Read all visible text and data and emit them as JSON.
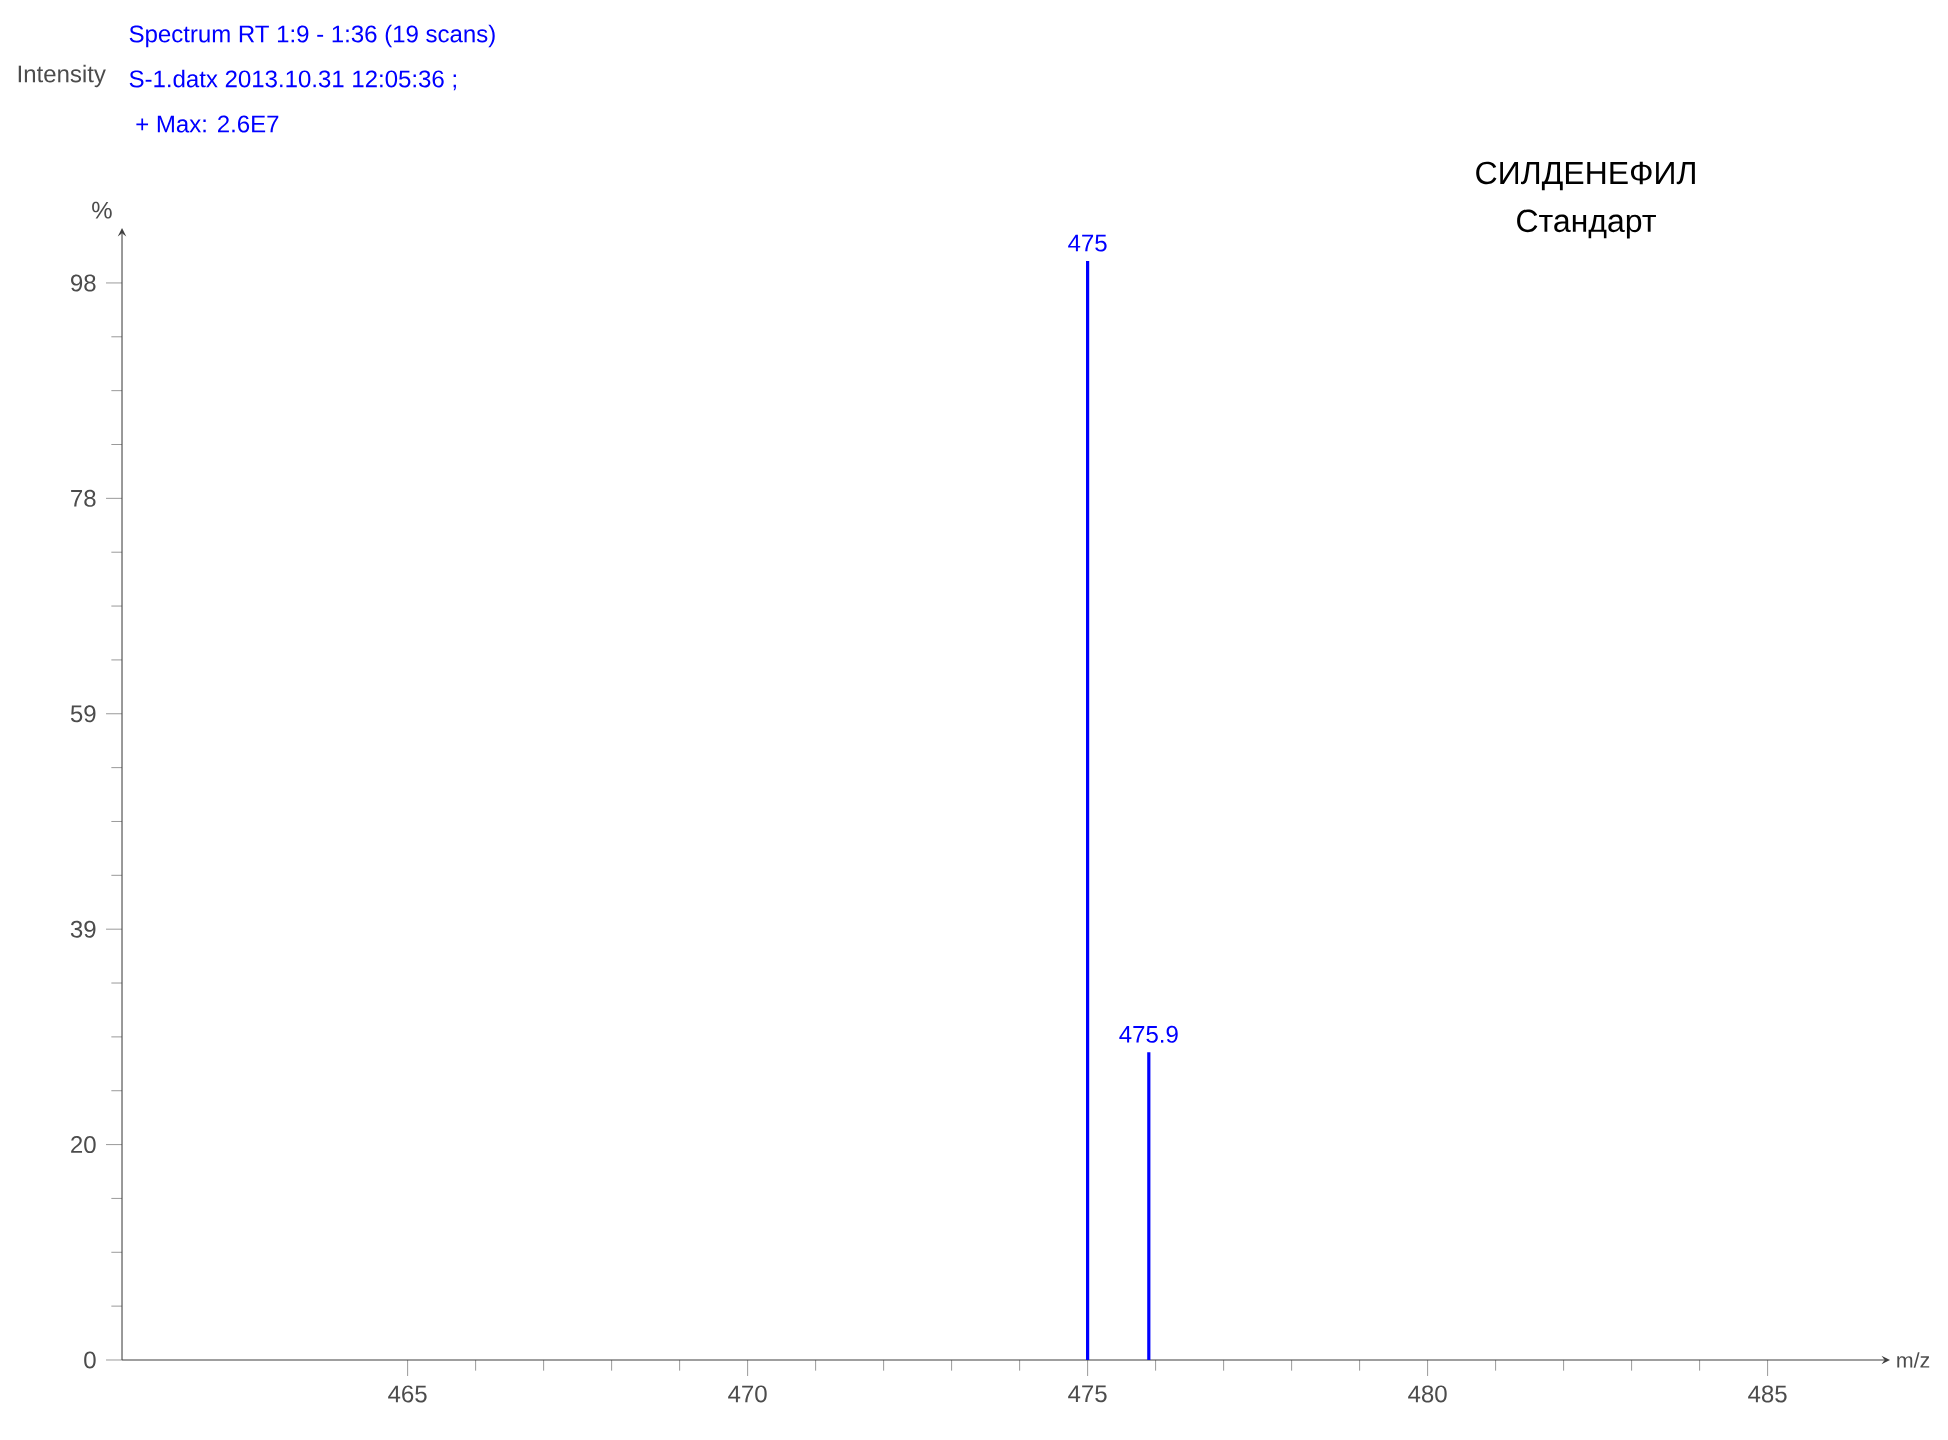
{
  "chart_data": {
    "type": "bar",
    "title": "СИЛДЕНЕФИЛ",
    "subtitle": "Стандарт",
    "xlabel": "m/z",
    "ylabel": "%",
    "annotations": [
      "Intensity",
      "Spectrum RT 1:9 - 1:36 (19 scans)",
      "S-1.datx 2013.10.31 12:05:36 ;",
      " + Max: 2.6E7",
      {
        "text": "475",
        "x": 475,
        "y": 100
      },
      {
        "text": "475.9",
        "x": 475.9,
        "y": 28
      }
    ],
    "x": [
      475,
      475.9
    ],
    "values": [
      100,
      28
    ],
    "color": "#0000ff",
    "xlim": [
      460.8,
      486.8
    ],
    "xticks": [
      465,
      470,
      475,
      480,
      485
    ],
    "ylim": [
      0,
      103
    ],
    "yticks": [
      0,
      {
        "value": 19.6,
        "label": "20"
      },
      {
        "value": 39.2,
        "label": "39"
      },
      {
        "value": 58.8,
        "label": "59"
      },
      {
        "value": 78.4,
        "label": "78"
      },
      98
    ]
  }
}
